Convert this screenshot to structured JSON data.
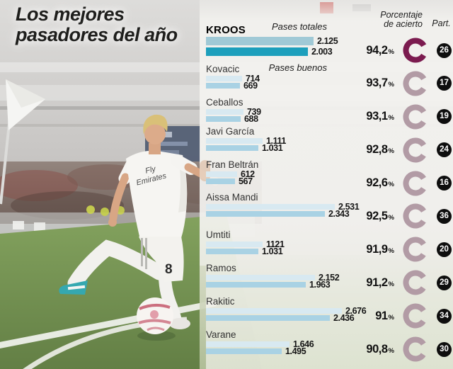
{
  "title": {
    "line1": "Los mejores",
    "line2": "pasadores del año"
  },
  "columns": {
    "totals": "Pases totales",
    "good": "Pases buenos",
    "accuracy_line1": "Porcentaje",
    "accuracy_line2": "de acierto",
    "part": "Part."
  },
  "percent_suffix": "%",
  "photo": {
    "shirt_sponsor_line1": "Fly",
    "shirt_sponsor_line2": "Emirates",
    "shorts_number": "8"
  },
  "colors": {
    "bar_totals": "#d8e9f1",
    "bar_good": "#a9d2e4",
    "bar_totals_highlight": "#a0c9d6",
    "bar_good_highlight": "#1d9fbc",
    "ring": "#b29ba5",
    "ring_highlight": "#7b1b4f",
    "badge": "#0e0e0e"
  },
  "chart_data": {
    "type": "bar",
    "orientation": "horizontal",
    "title": "Los mejores pasadores del año",
    "categories": [
      "KROOS",
      "Kovacic",
      "Ceballos",
      "Javi García",
      "Fran Beltrán",
      "Aissa Mandi",
      "Umtiti",
      "Ramos",
      "Rakitic",
      "Varane"
    ],
    "series": [
      {
        "name": "Pases totales",
        "values": [
          2125,
          714,
          739,
          1111,
          612,
          2531,
          1121,
          2152,
          2676,
          1646
        ],
        "labels": [
          "2.125",
          "714",
          "739",
          "1.111",
          "612",
          "2.531",
          "1121",
          "2.152",
          "2.676",
          "1.646"
        ]
      },
      {
        "name": "Pases buenos",
        "values": [
          2003,
          669,
          688,
          1031,
          567,
          2343,
          1031,
          1963,
          2436,
          1495
        ],
        "labels": [
          "2.003",
          "669",
          "688",
          "1.031",
          "567",
          "2.343",
          "1.031",
          "1.963",
          "2.436",
          "1.495"
        ]
      }
    ],
    "percent": {
      "name": "Porcentaje de acierto",
      "values": [
        94.2,
        93.7,
        93.1,
        92.8,
        92.6,
        92.5,
        91.9,
        91.2,
        91,
        90.8
      ],
      "labels": [
        "94,2",
        "93,7",
        "93,1",
        "92,8",
        "92,6",
        "92,5",
        "91,9",
        "91,2",
        "91",
        "90,8"
      ]
    },
    "participations": {
      "name": "Part.",
      "values": [
        26,
        17,
        19,
        24,
        16,
        36,
        20,
        29,
        34,
        30
      ]
    },
    "xlim": [
      0,
      2676
    ],
    "highlight_index": 0,
    "legend_position": "inline-annotations",
    "grid": false
  }
}
